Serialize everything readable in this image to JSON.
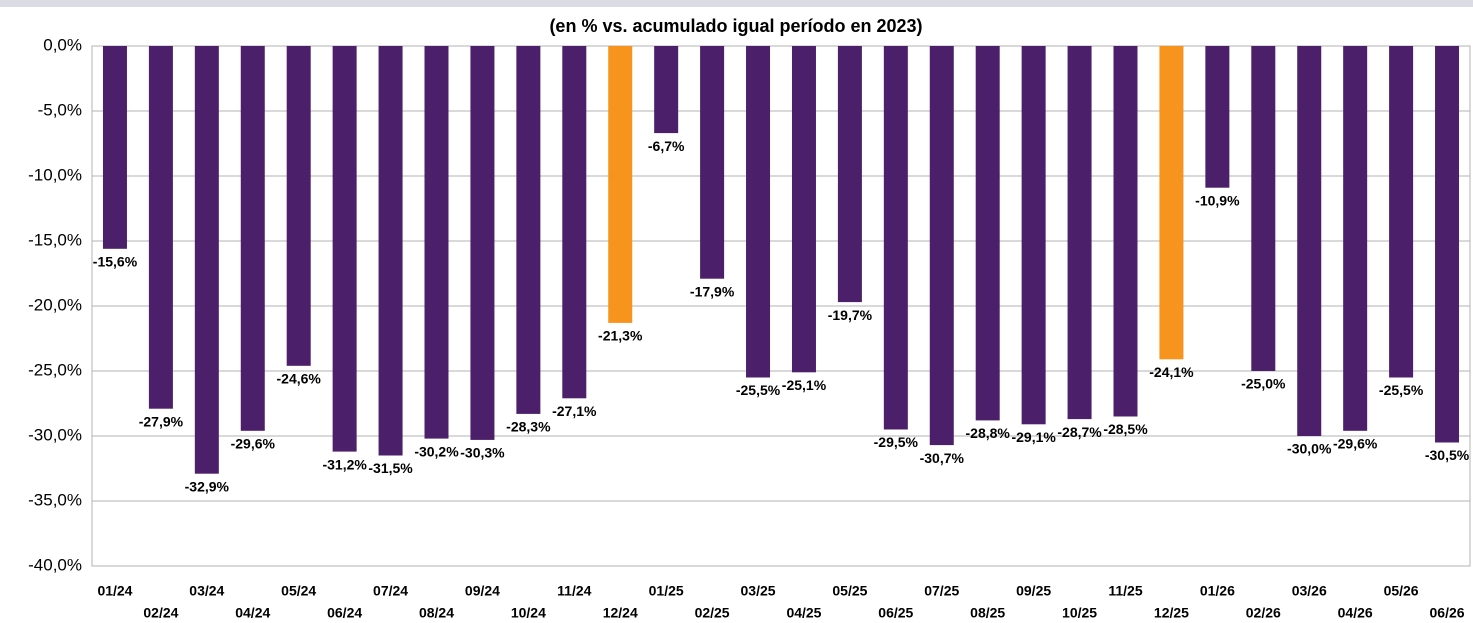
{
  "chart_data": {
    "type": "bar",
    "title": "(en % vs. acumulado igual período en 2023)",
    "categories": [
      "01/24",
      "02/24",
      "03/24",
      "04/24",
      "05/24",
      "06/24",
      "07/24",
      "08/24",
      "09/24",
      "10/24",
      "11/24",
      "12/24",
      "01/25",
      "02/25",
      "03/25",
      "04/25",
      "05/25",
      "06/25",
      "07/25",
      "08/25",
      "09/25",
      "10/25",
      "11/25",
      "12/25",
      "01/26",
      "02/26",
      "03/26",
      "04/26",
      "05/26",
      "06/26"
    ],
    "values": [
      -15.6,
      -27.9,
      -32.9,
      -29.6,
      -24.6,
      -31.2,
      -31.5,
      -30.2,
      -30.3,
      -28.3,
      -27.1,
      -21.3,
      -6.7,
      -17.9,
      -25.5,
      -25.1,
      -19.7,
      -29.5,
      -30.7,
      -28.8,
      -29.1,
      -28.7,
      -28.5,
      -24.1,
      -10.9,
      -25.0,
      -30.0,
      -29.6,
      -25.5,
      -30.5
    ],
    "value_labels": [
      "-15,6%",
      "-27,9%",
      "-32,9%",
      "-29,6%",
      "-24,6%",
      "-31,2%",
      "-31,5%",
      "-30,2%",
      "-30,3%",
      "-28,3%",
      "-27,1%",
      "-21,3%",
      "-6,7%",
      "-17,9%",
      "-25,5%",
      "-25,1%",
      "-19,7%",
      "-29,5%",
      "-30,7%",
      "-28,8%",
      "-29,1%",
      "-28,7%",
      "-28,5%",
      "-24,1%",
      "-10,9%",
      "-25,0%",
      "-30,0%",
      "-29,6%",
      "-25,5%",
      "-30,5%"
    ],
    "colors": [
      "#4b1f6a",
      "#4b1f6a",
      "#4b1f6a",
      "#4b1f6a",
      "#4b1f6a",
      "#4b1f6a",
      "#4b1f6a",
      "#4b1f6a",
      "#4b1f6a",
      "#4b1f6a",
      "#4b1f6a",
      "#f7941d",
      "#4b1f6a",
      "#4b1f6a",
      "#4b1f6a",
      "#4b1f6a",
      "#4b1f6a",
      "#4b1f6a",
      "#4b1f6a",
      "#4b1f6a",
      "#4b1f6a",
      "#4b1f6a",
      "#4b1f6a",
      "#f7941d",
      "#4b1f6a",
      "#4b1f6a",
      "#4b1f6a",
      "#4b1f6a",
      "#4b1f6a",
      "#4b1f6a"
    ],
    "ylim": [
      -40,
      0
    ],
    "yticks": [
      {
        "value": 0,
        "label": "0,0%"
      },
      {
        "value": -5,
        "label": "-5,0%"
      },
      {
        "value": -10,
        "label": "-10,0%"
      },
      {
        "value": -15,
        "label": "-15,0%"
      },
      {
        "value": -20,
        "label": "-20,0%"
      },
      {
        "value": -25,
        "label": "-25,0%"
      },
      {
        "value": -30,
        "label": "-30,0%"
      },
      {
        "value": -35,
        "label": "-35,0%"
      },
      {
        "value": -40,
        "label": "-40,0%"
      }
    ],
    "grid": true
  }
}
